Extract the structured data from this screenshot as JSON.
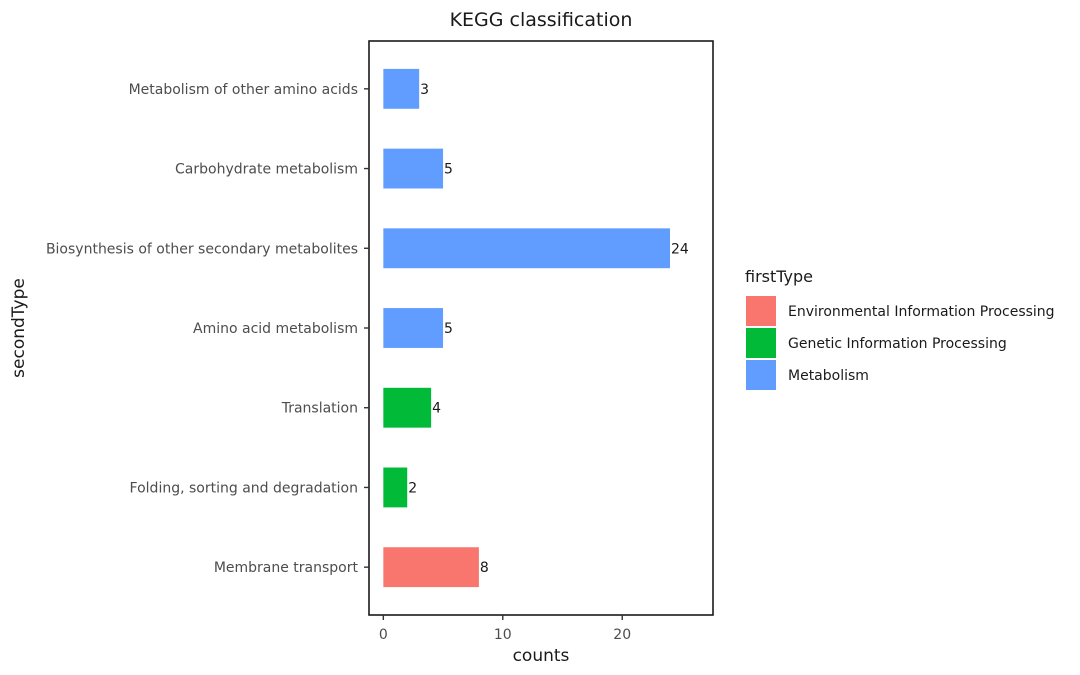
{
  "chart_data": {
    "type": "bar",
    "orientation": "horizontal",
    "title": "KEGG classification",
    "xlabel": "counts",
    "ylabel": "secondType",
    "xlim": [
      -1.2,
      27.6
    ],
    "xticks": [
      0,
      10,
      20
    ],
    "grid": false,
    "categories": [
      "Membrane transport",
      "Folding, sorting and degradation",
      "Translation",
      "Amino acid metabolism",
      "Biosynthesis of other secondary metabolites",
      "Carbohydrate metabolism",
      "Metabolism of other amino acids"
    ],
    "values": [
      8,
      2,
      4,
      5,
      24,
      5,
      3
    ],
    "groups": [
      "Environmental Information Processing",
      "Genetic Information Processing",
      "Genetic Information Processing",
      "Metabolism",
      "Metabolism",
      "Metabolism",
      "Metabolism"
    ],
    "legend": {
      "title": "firstType",
      "placement": "right",
      "entries": [
        {
          "name": "Environmental Information Processing",
          "color": "#F8766D"
        },
        {
          "name": "Genetic Information Processing",
          "color": "#00BA38"
        },
        {
          "name": "Metabolism",
          "color": "#619CFF"
        }
      ]
    }
  }
}
